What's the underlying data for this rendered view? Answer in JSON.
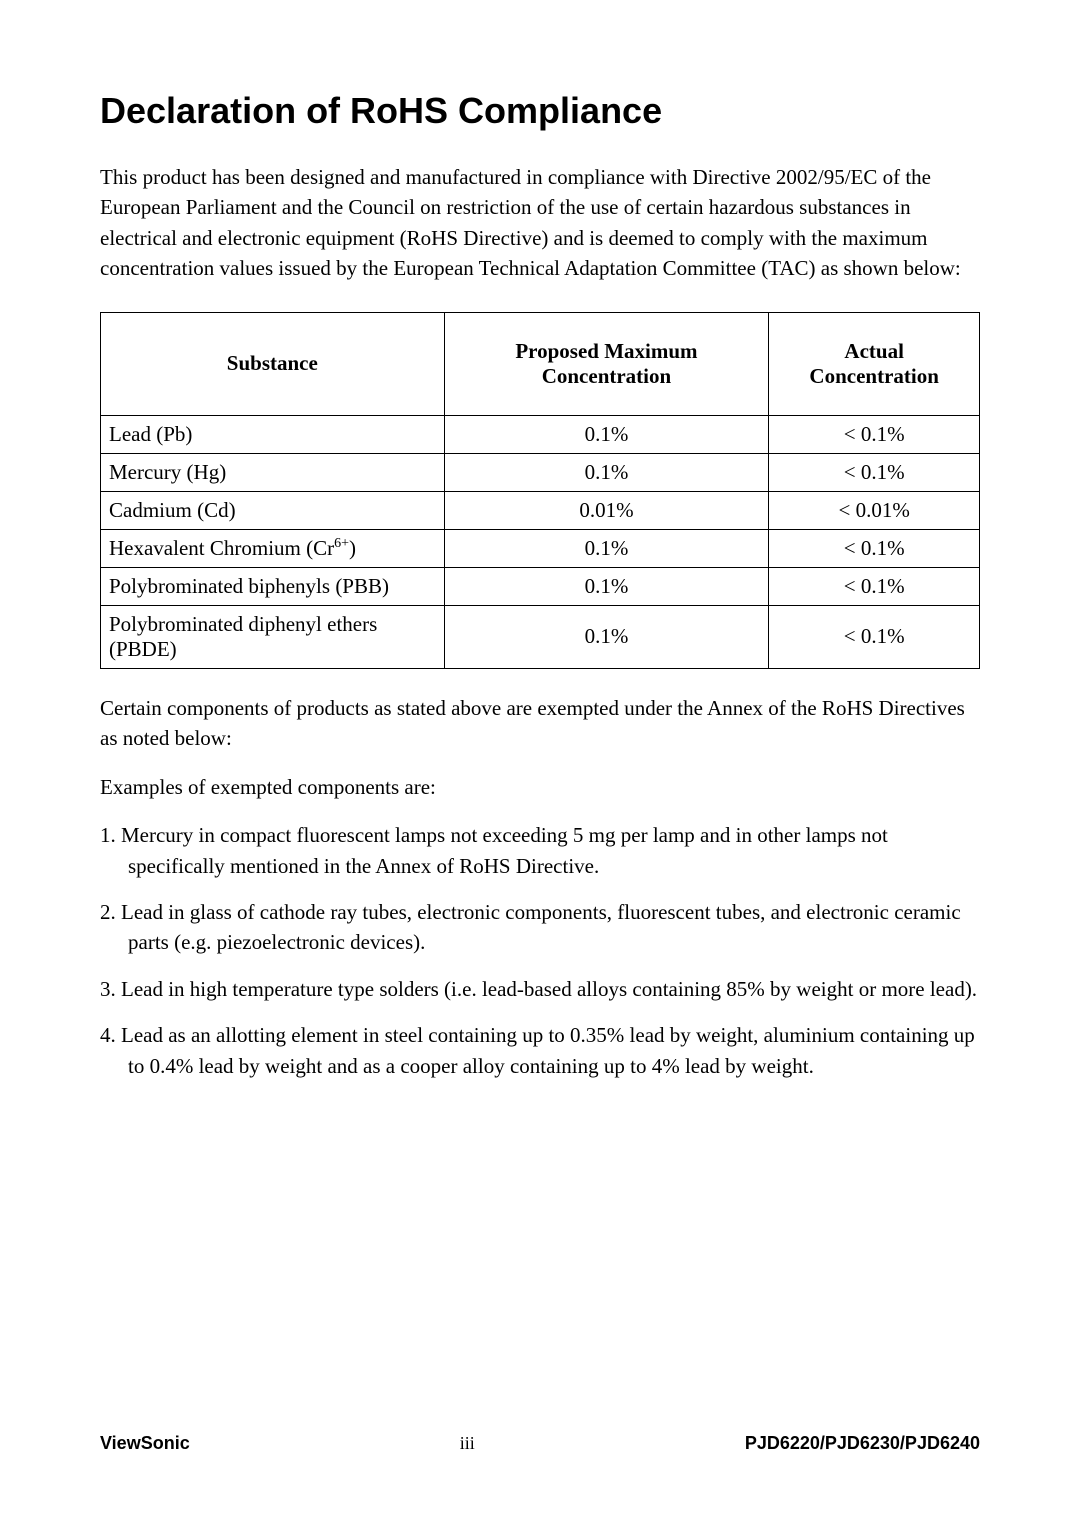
{
  "title": "Declaration of RoHS Compliance",
  "intro": "This product has been designed and manufactured in compliance with Directive 2002/95/EC of the European Parliament and the Council on restriction of the use of certain hazardous substances in electrical and electronic equipment (RoHS Directive) and is deemed to comply with the maximum concentration values issued by the European Technical Adaptation Committee (TAC) as shown below:",
  "table": {
    "headers": {
      "substance": "Substance",
      "proposed": "Proposed Maximum Concentration",
      "actual": "Actual Concentration"
    },
    "rows": [
      {
        "substance": "Lead (Pb)",
        "proposed": "0.1%",
        "actual": "< 0.1%"
      },
      {
        "substance": "Mercury (Hg)",
        "proposed": "0.1%",
        "actual": "< 0.1%"
      },
      {
        "substance": "Cadmium (Cd)",
        "proposed": "0.01%",
        "actual": "< 0.01%"
      },
      {
        "substance_pre": "Hexavalent Chromium (Cr",
        "substance_sup": "6+",
        "substance_post": ")",
        "proposed": "0.1%",
        "actual": "< 0.1%"
      },
      {
        "substance": "Polybrominated biphenyls (PBB)",
        "proposed": "0.1%",
        "actual": "< 0.1%"
      },
      {
        "substance": "Polybrominated diphenyl ethers (PBDE)",
        "proposed": "0.1%",
        "actual": "< 0.1%"
      }
    ]
  },
  "exempt_intro": "Certain components of products as stated above are exempted under the Annex of the RoHS Directives as noted below:",
  "exempt_heading": "Examples of exempted components are:",
  "exemptions": [
    "1. Mercury in compact fluorescent lamps not exceeding 5 mg per lamp and in other lamps not specifically mentioned in the Annex of RoHS Directive.",
    "2. Lead in glass of cathode ray tubes, electronic components, fluorescent tubes, and electronic ceramic parts (e.g. piezoelectronic devices).",
    "3. Lead in high temperature type solders (i.e. lead-based alloys containing 85% by weight or more lead).",
    "4. Lead as an allotting element in steel containing up to 0.35% lead by weight, aluminium containing up to 0.4% lead by weight and as a cooper alloy containing up to 4% lead by weight."
  ],
  "footer": {
    "brand": "ViewSonic",
    "page": "iii",
    "model": "PJD6220/PJD6230/PJD6240"
  }
}
